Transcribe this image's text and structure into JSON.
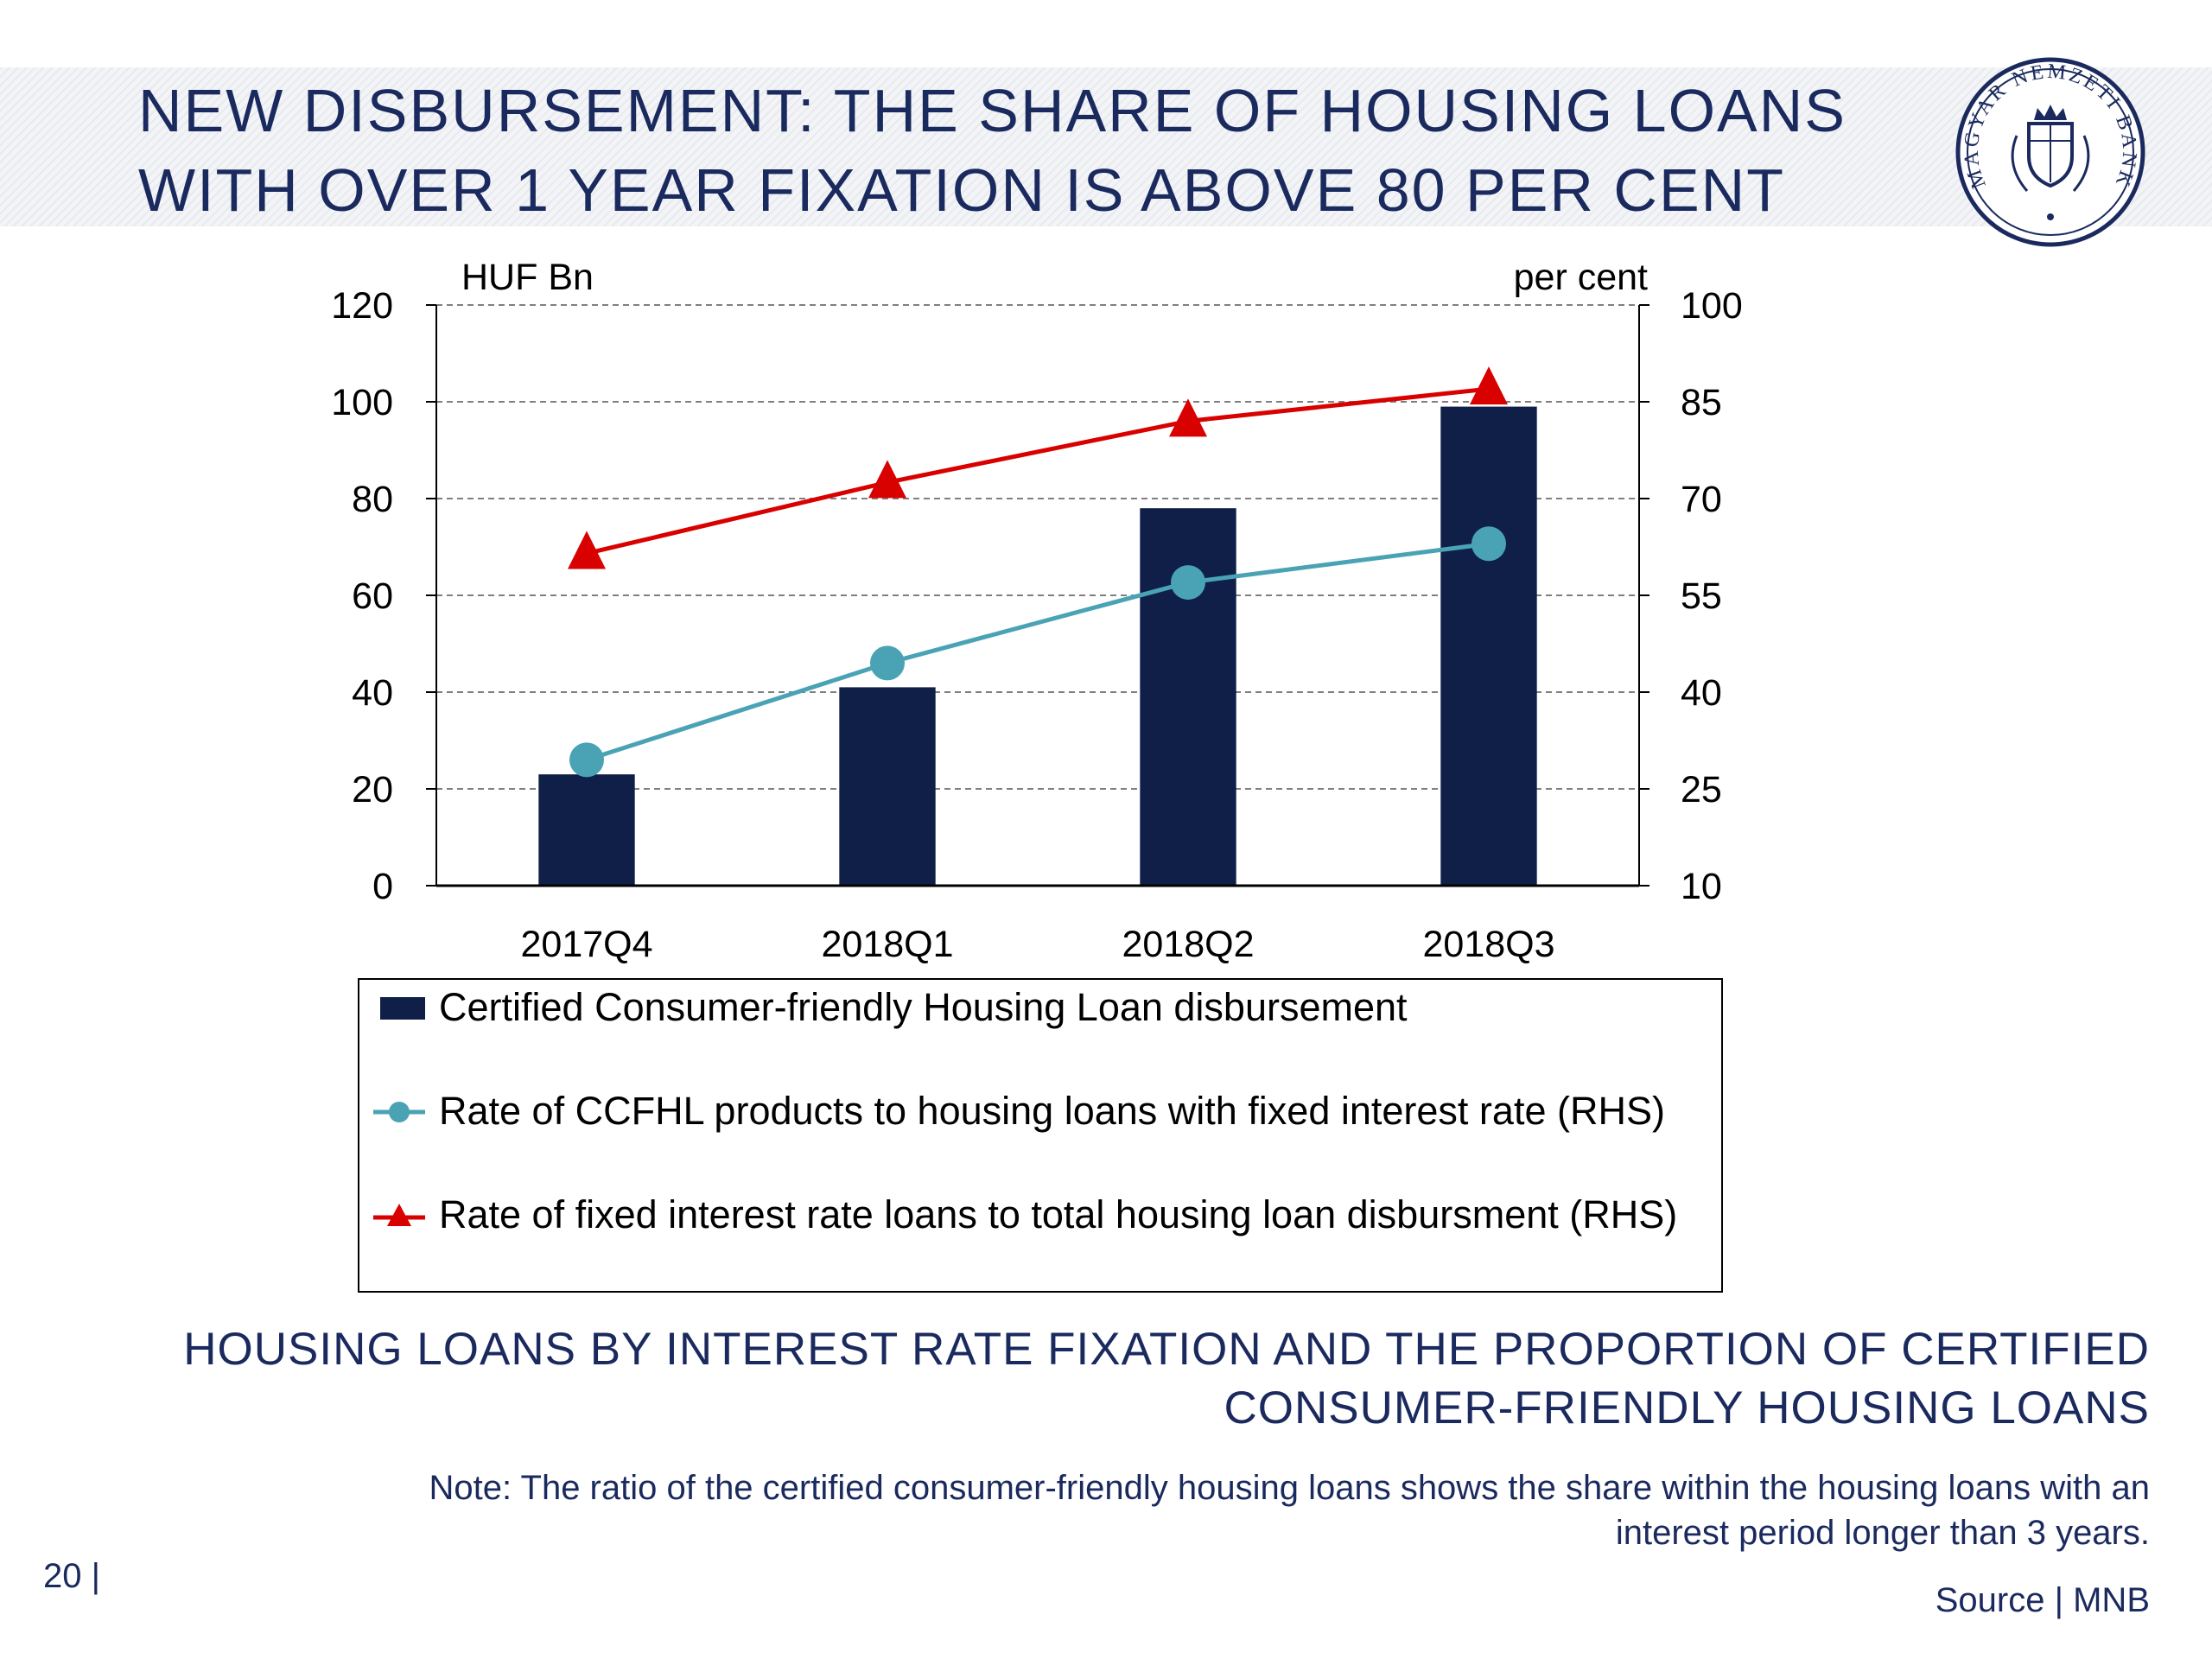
{
  "slide": {
    "title_lines": [
      "NEW DISBURSEMENT: THE SHARE OF HOUSING LOANS",
      "WITH OVER 1 YEAR FIXATION IS ABOVE 80 PER CENT"
    ],
    "caption_lines": [
      "HOUSING LOANS BY INTEREST RATE FIXATION AND THE PROPORTION OF CERTIFIED",
      "CONSUMER-FRIENDLY HOUSING LOANS"
    ],
    "note_lines": [
      "Note: The ratio of the certified consumer-friendly housing loans shows the share within the housing loans with an",
      "interest period longer than 3 years."
    ],
    "source": "Source | MNB",
    "page_number": "20 |",
    "logo_text": "MAGYAR NEMZETI BANK"
  },
  "colors": {
    "title": "#1b2a5e",
    "bar": "#0f1f47",
    "ccfhl_line": "#4aa3b5",
    "fixed_line": "#d90000"
  },
  "chart_data": {
    "type": "bar",
    "categories": [
      "2017Q4",
      "2018Q1",
      "2018Q2",
      "2018Q3"
    ],
    "y_left": {
      "label": "HUF Bn",
      "lim": [
        0,
        120
      ],
      "ticks": [
        0,
        20,
        40,
        60,
        80,
        100,
        120
      ]
    },
    "y_right": {
      "label": "per cent",
      "lim": [
        10,
        100
      ],
      "ticks": [
        10,
        25,
        40,
        55,
        70,
        85,
        100
      ]
    },
    "grid": true,
    "legend_position": "bottom",
    "series": [
      {
        "name": "Certified Consumer-friendly Housing Loan disbursement",
        "type": "bar",
        "axis": "left",
        "values": [
          23,
          41,
          78,
          99
        ]
      },
      {
        "name": "Rate of CCFHL products to housing loans with fixed interest rate (RHS)",
        "type": "line",
        "marker": "circle",
        "axis": "right",
        "values": [
          29.5,
          44.5,
          57,
          63
        ]
      },
      {
        "name": "Rate of fixed interest rate loans to total housing loan disbursment (RHS)",
        "type": "line",
        "marker": "triangle",
        "axis": "right",
        "values": [
          61.5,
          72.5,
          82,
          87
        ]
      }
    ]
  }
}
